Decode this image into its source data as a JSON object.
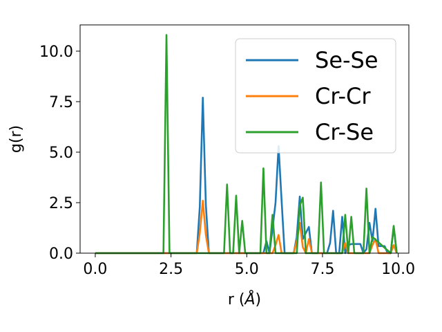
{
  "chart_data": {
    "type": "line",
    "xlabel_prefix": "r (",
    "xlabel_symbol": "Å",
    "xlabel_suffix": ")",
    "ylabel": "g(r)",
    "xlim": [
      -0.5,
      10.35
    ],
    "ylim": [
      0,
      11.3
    ],
    "xticks": [
      0.0,
      2.5,
      5.0,
      7.5,
      10.0
    ],
    "xtick_labels": [
      "0.0",
      "2.5",
      "5.0",
      "7.5",
      "10.0"
    ],
    "yticks": [
      0.0,
      2.5,
      5.0,
      7.5,
      10.0
    ],
    "ytick_labels": [
      "0.0",
      "2.5",
      "5.0",
      "7.5",
      "10.0"
    ],
    "grid": false,
    "legend_position": "upper-right",
    "series": [
      {
        "name": "Se-Se",
        "color": "#1f77b4",
        "x": [
          0.0,
          3.35,
          3.45,
          3.55,
          3.65,
          3.75,
          5.55,
          5.65,
          5.75,
          5.85,
          5.95,
          6.05,
          6.15,
          6.25,
          6.55,
          6.65,
          6.75,
          6.85,
          6.95,
          7.05,
          7.15,
          7.25,
          7.65,
          7.75,
          7.85,
          7.95,
          8.05,
          8.15,
          8.25,
          8.35,
          8.45,
          8.55,
          8.65,
          8.75,
          8.85,
          8.95,
          9.05,
          9.15,
          9.25,
          9.35,
          9.45,
          9.55,
          9.65,
          9.75,
          9.85,
          9.95
        ],
        "y": [
          0.0,
          0.0,
          2.3,
          7.7,
          2.4,
          0.0,
          0.0,
          0.6,
          0.0,
          1.2,
          2.5,
          5.3,
          2.6,
          0.0,
          0.0,
          0.8,
          2.8,
          0.7,
          1.0,
          1.3,
          0.0,
          0.0,
          0.0,
          0.5,
          2.1,
          0.0,
          0.0,
          1.8,
          0.0,
          0.4,
          0.45,
          0.45,
          0.45,
          0.45,
          0.0,
          0.2,
          1.5,
          0.6,
          2.2,
          0.35,
          0.35,
          0.35,
          0.0,
          0.0,
          1.3,
          0.0
        ]
      },
      {
        "name": "Cr-Cr",
        "color": "#ff7f0e",
        "x": [
          0.0,
          3.35,
          3.45,
          3.55,
          3.65,
          3.75,
          5.85,
          5.95,
          6.05,
          6.15,
          6.55,
          6.65,
          6.75,
          6.85,
          6.95,
          7.05,
          7.15,
          8.15,
          8.25,
          8.35,
          9.05,
          9.15,
          9.25,
          9.35,
          9.75,
          9.85,
          9.95
        ],
        "y": [
          0.0,
          0.0,
          1.0,
          2.6,
          0.9,
          0.0,
          0.0,
          0.4,
          0.9,
          0.0,
          0.0,
          0.6,
          1.5,
          0.3,
          0.0,
          0.7,
          0.0,
          0.0,
          0.5,
          0.0,
          0.0,
          0.4,
          0.7,
          0.0,
          0.0,
          0.4,
          0.0
        ]
      },
      {
        "name": "Cr-Se",
        "color": "#2ca02c",
        "x": [
          0.0,
          2.25,
          2.35,
          2.45,
          4.25,
          4.35,
          4.45,
          4.55,
          4.65,
          4.75,
          4.85,
          4.95,
          5.45,
          5.55,
          5.65,
          5.75,
          5.85,
          5.95,
          6.65,
          6.75,
          6.85,
          6.95,
          7.35,
          7.45,
          7.55,
          8.15,
          8.25,
          8.35,
          8.45,
          8.55,
          8.85,
          8.95,
          9.05,
          9.15,
          9.75,
          9.85,
          9.95
        ],
        "y": [
          0.0,
          0.0,
          10.8,
          0.0,
          0.0,
          3.4,
          0.0,
          0.0,
          2.85,
          0.0,
          1.6,
          0.0,
          0.0,
          4.2,
          0.0,
          0.0,
          1.9,
          0.0,
          0.0,
          2.35,
          2.75,
          0.0,
          0.0,
          3.5,
          0.0,
          0.0,
          1.9,
          0.0,
          1.8,
          0.0,
          0.0,
          3.2,
          0.0,
          0.8,
          0.0,
          1.35,
          0.0
        ]
      }
    ]
  }
}
